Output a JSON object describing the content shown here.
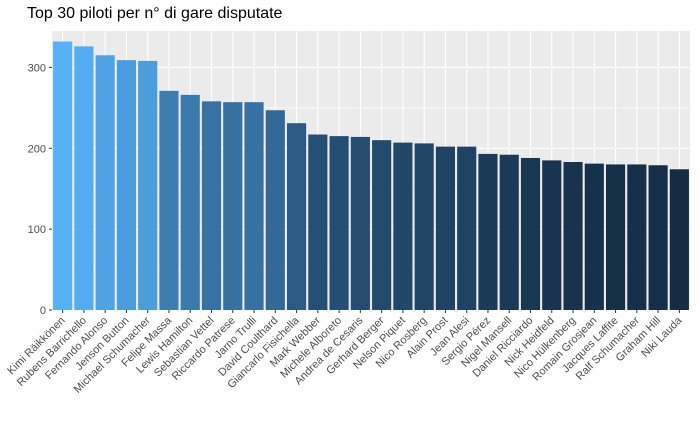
{
  "chart_data": {
    "type": "bar",
    "title": "Top 30 piloti per n° di gare disputate",
    "xlabel": "",
    "ylabel": "",
    "ylim": [
      0,
      345
    ],
    "yticks": [
      0,
      100,
      200,
      300
    ],
    "grid": true,
    "legend": "none",
    "colors": {
      "panel": "#EBEBEB",
      "grid": "#FFFFFF",
      "bar_high": "#56B1F7",
      "bar_low": "#132B43",
      "tick_text": "#4D4D4D"
    },
    "categories": [
      "Kimi Räikkönen",
      "Rubens Barrichello",
      "Fernando Alonso",
      "Jenson Button",
      "Michael Schumacher",
      "Felipe Massa",
      "Lewis Hamilton",
      "Sebastian Vettel",
      "Riccardo Patrese",
      "Jarno Trulli",
      "David Coulthard",
      "Giancarlo Fisichella",
      "Mark Webber",
      "Michele Alboreto",
      "Andrea de Cesaris",
      "Gerhard Berger",
      "Nelson Piquet",
      "Nico Rosberg",
      "Alain Prost",
      "Jean Alesi",
      "Sergio Pérez",
      "Nigel Mansell",
      "Daniel Ricciardo",
      "Nick Heidfeld",
      "Nico Hülkenberg",
      "Romain Grosjean",
      "Jacques Laffite",
      "Ralf Schumacher",
      "Graham Hill",
      "Niki Lauda"
    ],
    "values": [
      332,
      326,
      315,
      309,
      308,
      271,
      266,
      258,
      257,
      257,
      247,
      231,
      217,
      215,
      214,
      210,
      207,
      206,
      202,
      202,
      193,
      192,
      188,
      185,
      183,
      181,
      180,
      180,
      179,
      174
    ]
  }
}
